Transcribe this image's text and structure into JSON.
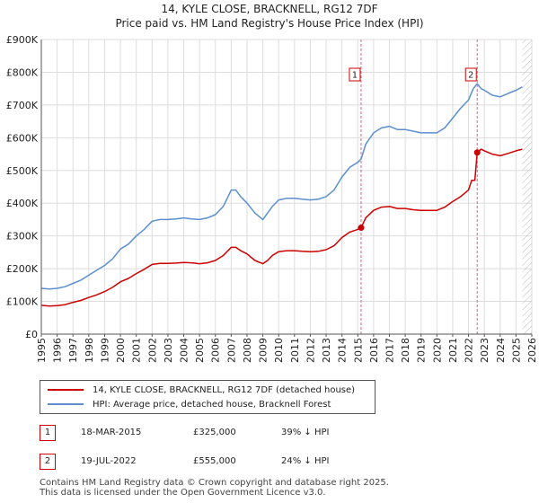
{
  "title_line1": "14, KYLE CLOSE, BRACKNELL, RG12 7DF",
  "title_line2": "Price paid vs. HM Land Registry's House Price Index (HPI)",
  "colors": {
    "property": "#cc0000",
    "hpi": "#5b8fd0",
    "marker_line": "#e06080",
    "grid": "#dddddd",
    "hatch": "#bbbbbb"
  },
  "chart_data": {
    "type": "line",
    "title": "Price paid vs. HM Land Registry's House Price Index (HPI)",
    "ylim": [
      0,
      900000
    ],
    "xlim": [
      1995,
      2026
    ],
    "y_ticks": [
      0,
      100000,
      200000,
      300000,
      400000,
      500000,
      600000,
      700000,
      800000,
      900000
    ],
    "y_tick_labels": [
      "£0",
      "£100K",
      "£200K",
      "£300K",
      "£400K",
      "£500K",
      "£600K",
      "£700K",
      "£800K",
      "£900K"
    ],
    "x_tick_labels": [
      "1995",
      "1996",
      "1997",
      "1998",
      "1999",
      "2000",
      "2001",
      "2002",
      "2003",
      "2004",
      "2005",
      "2006",
      "2007",
      "2008",
      "2009",
      "2010",
      "2011",
      "2012",
      "2013",
      "2014",
      "2015",
      "2016",
      "2017",
      "2018",
      "2019",
      "2020",
      "2021",
      "2022",
      "2023",
      "2024",
      "2025",
      "2026"
    ],
    "hatch_from": 2025.4,
    "series": [
      {
        "name": "HPI: Average price, detached house, Bracknell Forest",
        "x": [
          1995,
          1995.5,
          1996,
          1996.5,
          1997,
          1997.5,
          1998,
          1998.5,
          1999,
          1999.5,
          2000,
          2000.5,
          2001,
          2001.5,
          2002,
          2002.5,
          2003,
          2003.5,
          2004,
          2004.5,
          2005,
          2005.5,
          2006,
          2006.5,
          2007,
          2007.3,
          2007.6,
          2008,
          2008.5,
          2009,
          2009.3,
          2009.6,
          2010,
          2010.5,
          2011,
          2011.5,
          2012,
          2012.5,
          2013,
          2013.5,
          2014,
          2014.5,
          2015,
          2015.21,
          2015.5,
          2016,
          2016.5,
          2017,
          2017.5,
          2018,
          2018.5,
          2019,
          2019.5,
          2020,
          2020.5,
          2021,
          2021.5,
          2022,
          2022.3,
          2022.55,
          2022.8,
          2023,
          2023.5,
          2024,
          2024.5,
          2025,
          2025.4
        ],
        "values": [
          140000,
          138000,
          140000,
          145000,
          155000,
          165000,
          180000,
          195000,
          210000,
          230000,
          260000,
          275000,
          300000,
          320000,
          345000,
          350000,
          350000,
          352000,
          355000,
          352000,
          350000,
          355000,
          365000,
          390000,
          440000,
          440000,
          420000,
          400000,
          370000,
          350000,
          370000,
          390000,
          410000,
          415000,
          415000,
          412000,
          410000,
          412000,
          420000,
          440000,
          480000,
          510000,
          525000,
          535000,
          580000,
          615000,
          630000,
          635000,
          625000,
          625000,
          620000,
          615000,
          615000,
          615000,
          630000,
          660000,
          690000,
          715000,
          750000,
          765000,
          750000,
          745000,
          730000,
          725000,
          735000,
          745000,
          755000
        ]
      },
      {
        "name": "14, KYLE CLOSE, BRACKNELL, RG12 7DF (detached house)",
        "x": [
          1995,
          1995.5,
          1996,
          1996.5,
          1997,
          1997.5,
          1998,
          1998.5,
          1999,
          1999.5,
          2000,
          2000.5,
          2001,
          2001.5,
          2002,
          2002.5,
          2003,
          2003.5,
          2004,
          2004.5,
          2005,
          2005.5,
          2006,
          2006.5,
          2007,
          2007.3,
          2007.6,
          2008,
          2008.5,
          2009,
          2009.3,
          2009.6,
          2010,
          2010.5,
          2011,
          2011.5,
          2012,
          2012.5,
          2013,
          2013.5,
          2014,
          2014.5,
          2015,
          2015.21,
          2015.5,
          2016,
          2016.5,
          2017,
          2017.5,
          2018,
          2018.5,
          2019,
          2019.5,
          2020,
          2020.5,
          2021,
          2021.5,
          2022,
          2022.2,
          2022.4,
          2022.55,
          2022.8,
          2023,
          2023.5,
          2024,
          2024.5,
          2025,
          2025.4
        ],
        "values": [
          88000,
          86000,
          87000,
          90000,
          97000,
          103000,
          112000,
          120000,
          130000,
          143000,
          160000,
          170000,
          185000,
          198000,
          213000,
          216000,
          216000,
          217000,
          219000,
          218000,
          215000,
          218000,
          225000,
          240000,
          265000,
          265000,
          255000,
          245000,
          225000,
          215000,
          225000,
          240000,
          252000,
          255000,
          255000,
          253000,
          252000,
          253000,
          258000,
          270000,
          295000,
          312000,
          320000,
          325000,
          355000,
          378000,
          388000,
          390000,
          384000,
          384000,
          380000,
          378000,
          378000,
          378000,
          388000,
          405000,
          420000,
          440000,
          470000,
          470000,
          555000,
          565000,
          560000,
          550000,
          545000,
          552000,
          560000,
          565000
        ]
      }
    ],
    "sales_points": [
      {
        "x": 2015.21,
        "y": 325000,
        "label": "1"
      },
      {
        "x": 2022.55,
        "y": 555000,
        "label": "2"
      }
    ]
  },
  "legend": {
    "property": "14, KYLE CLOSE, BRACKNELL, RG12 7DF (detached house)",
    "hpi": "HPI: Average price, detached house, Bracknell Forest"
  },
  "sales": [
    {
      "num": "1",
      "date": "18-MAR-2015",
      "price": "£325,000",
      "diff": "39% ↓ HPI"
    },
    {
      "num": "2",
      "date": "19-JUL-2022",
      "price": "£555,000",
      "diff": "24% ↓ HPI"
    }
  ],
  "footer": {
    "line1": "Contains HM Land Registry data © Crown copyright and database right 2025.",
    "line2": "This data is licensed under the Open Government Licence v3.0."
  }
}
